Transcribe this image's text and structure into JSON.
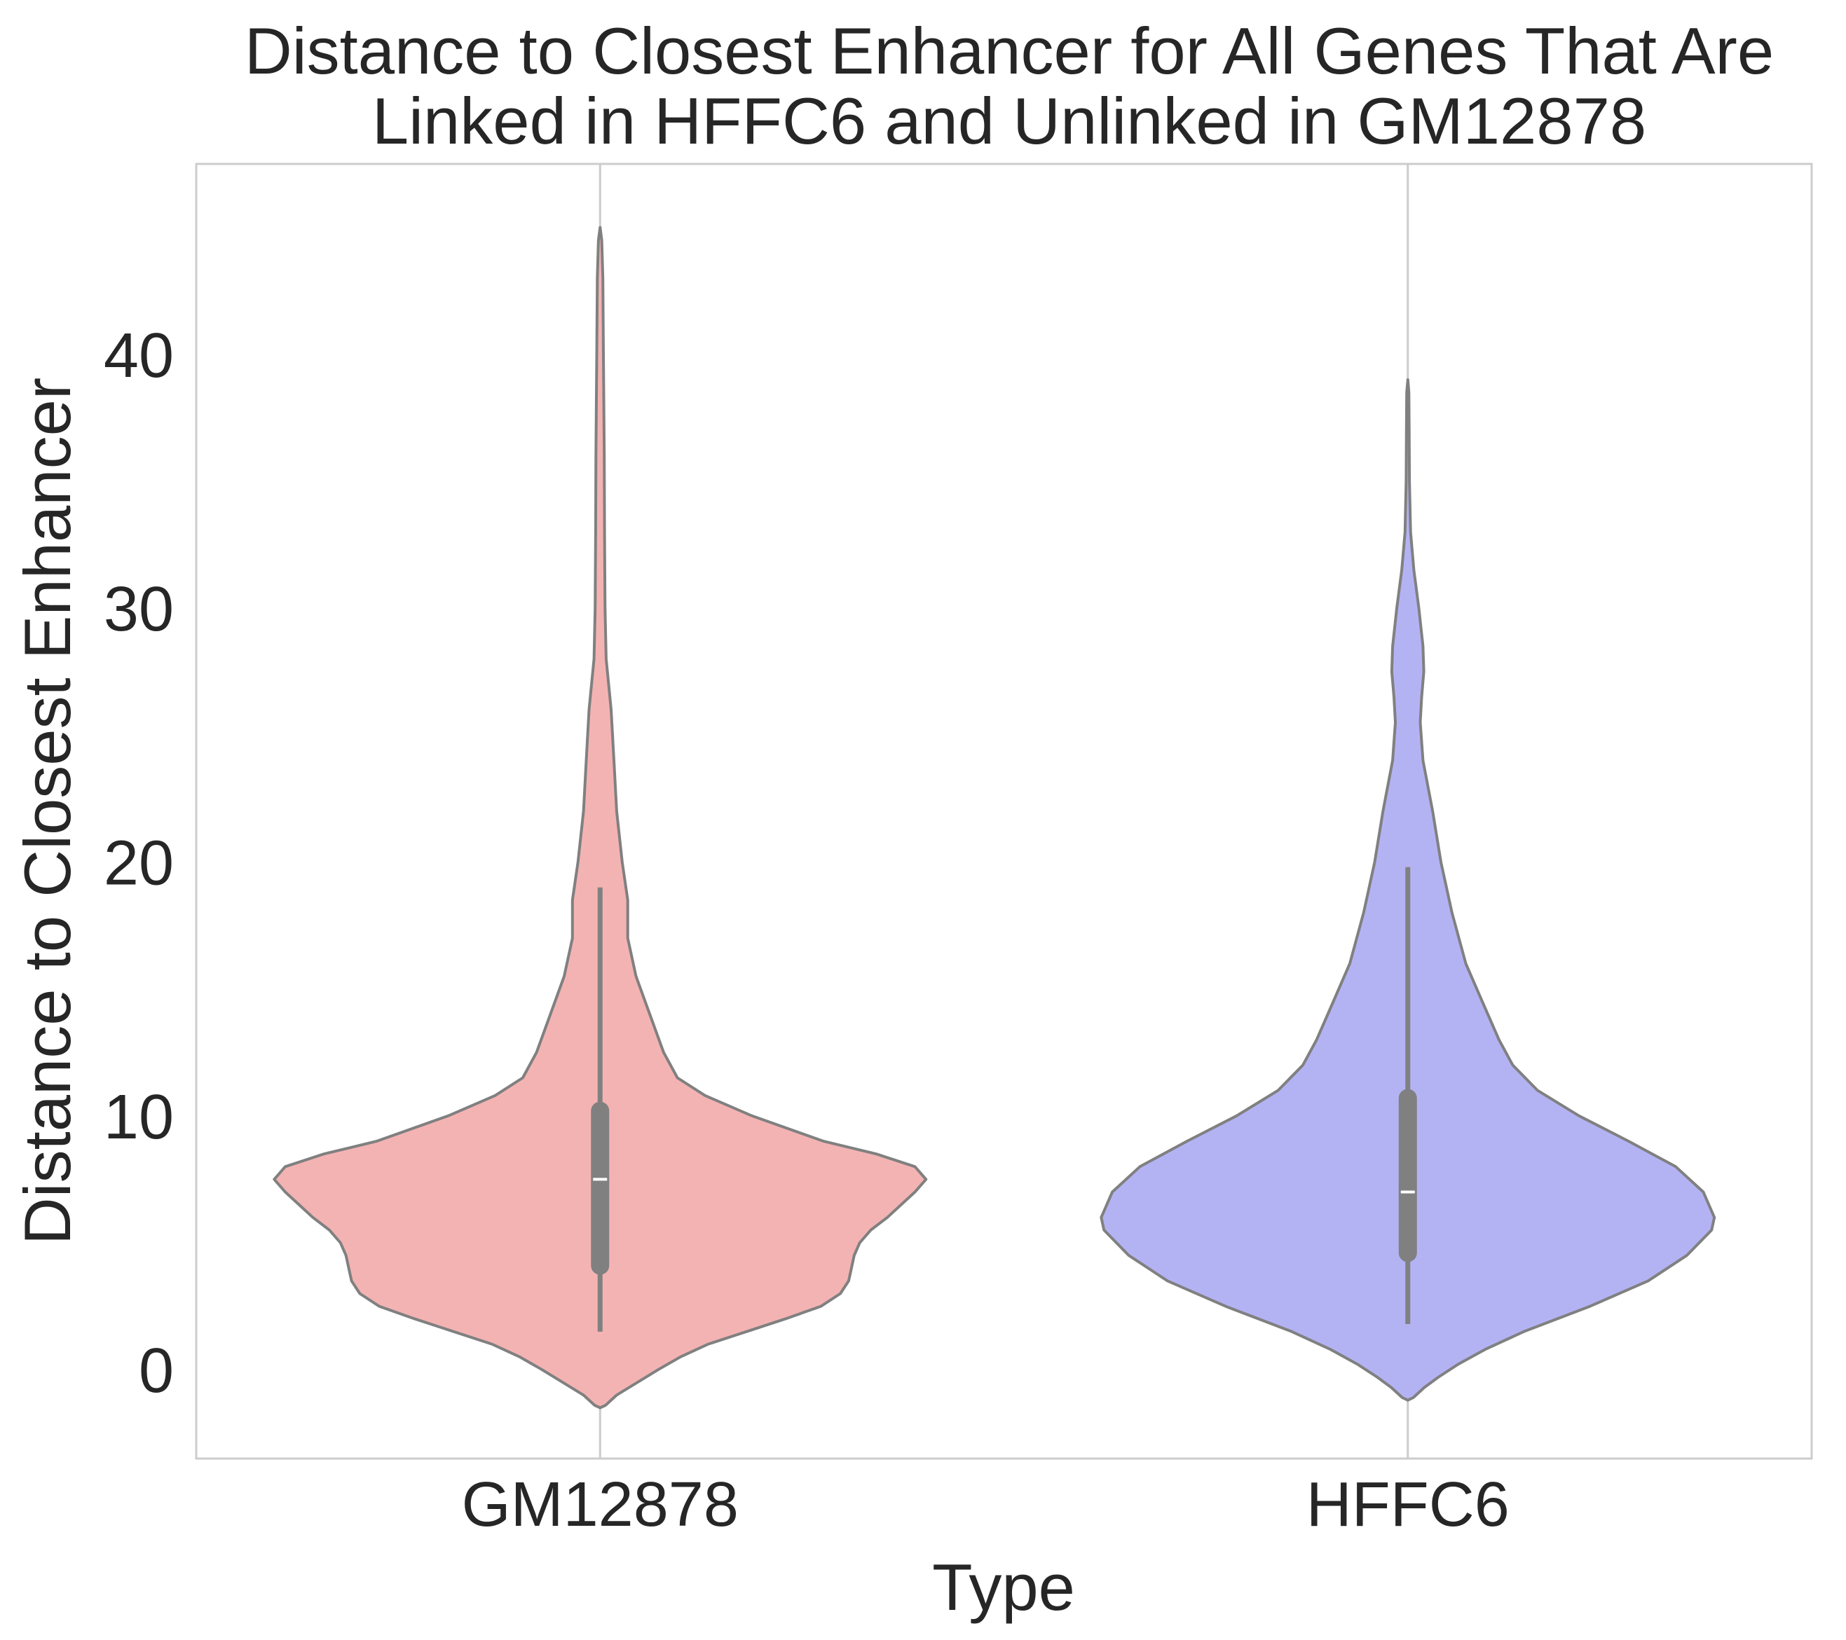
{
  "chart_data": {
    "type": "violin",
    "title": [
      "Distance to Closest Enhancer for All Genes That Are",
      "Linked in HFFC6 and Unlinked in GM12878"
    ],
    "xlabel": "Type",
    "ylabel": "Distance to Closest Enhancer",
    "categories": [
      "GM12878",
      "HFFC6"
    ],
    "ylim": [
      -3.5,
      47.5
    ],
    "yticks": [
      0,
      10,
      20,
      30,
      40
    ],
    "grid": true,
    "series": [
      {
        "category": "GM12878",
        "fill": "#f4b3b3",
        "edge": "#808080",
        "whisker": [
          1.5,
          19.0
        ],
        "quartiles": [
          4.1,
          10.2
        ],
        "median": 7.5,
        "density": [
          [
            -1.5,
            0.0
          ],
          [
            -1.4,
            0.02
          ],
          [
            -1.0,
            0.06
          ],
          [
            -0.6,
            0.12
          ],
          [
            0,
            0.21
          ],
          [
            0.5,
            0.29
          ],
          [
            1.0,
            0.39
          ],
          [
            1.5,
            0.53
          ],
          [
            2.0,
            0.67
          ],
          [
            2.5,
            0.8
          ],
          [
            3.0,
            0.87
          ],
          [
            3.5,
            0.9
          ],
          [
            4.0,
            0.91
          ],
          [
            4.5,
            0.92
          ],
          [
            5.0,
            0.94
          ],
          [
            5.5,
            0.98
          ],
          [
            6.0,
            1.04
          ],
          [
            7.0,
            1.14
          ],
          [
            7.5,
            1.18
          ],
          [
            8.0,
            1.14
          ],
          [
            8.5,
            1.0
          ],
          [
            9.0,
            0.81
          ],
          [
            10.0,
            0.55
          ],
          [
            10.8,
            0.38
          ],
          [
            11.5,
            0.28
          ],
          [
            12.5,
            0.23
          ],
          [
            14.0,
            0.18
          ],
          [
            15.5,
            0.13
          ],
          [
            17.0,
            0.1
          ],
          [
            18.5,
            0.1
          ],
          [
            20.0,
            0.08
          ],
          [
            22.0,
            0.06
          ],
          [
            24.0,
            0.05
          ],
          [
            26.0,
            0.04
          ],
          [
            28.0,
            0.022
          ],
          [
            30.0,
            0.018
          ],
          [
            33.0,
            0.016
          ],
          [
            36.0,
            0.015
          ],
          [
            40.0,
            0.012
          ],
          [
            43.0,
            0.01
          ],
          [
            44.5,
            0.006
          ],
          [
            45.0,
            0.0
          ]
        ]
      },
      {
        "category": "HFFC6",
        "fill": "#b3b3f4",
        "edge": "#808080",
        "whisker": [
          1.8,
          19.8
        ],
        "quartiles": [
          4.6,
          10.7
        ],
        "median": 7.0,
        "density": [
          [
            -1.2,
            0.0
          ],
          [
            -1.1,
            0.02
          ],
          [
            -0.7,
            0.06
          ],
          [
            -0.3,
            0.11
          ],
          [
            0.2,
            0.18
          ],
          [
            0.8,
            0.28
          ],
          [
            1.5,
            0.42
          ],
          [
            2.5,
            0.66
          ],
          [
            3.5,
            0.87
          ],
          [
            4.5,
            1.01
          ],
          [
            5.5,
            1.1
          ],
          [
            6.0,
            1.11
          ],
          [
            7.0,
            1.07
          ],
          [
            8.0,
            0.97
          ],
          [
            9.0,
            0.8
          ],
          [
            10.0,
            0.62
          ],
          [
            11.0,
            0.47
          ],
          [
            12.0,
            0.38
          ],
          [
            13.0,
            0.33
          ],
          [
            14.5,
            0.27
          ],
          [
            16.0,
            0.21
          ],
          [
            18.0,
            0.16
          ],
          [
            20.0,
            0.12
          ],
          [
            22.0,
            0.09
          ],
          [
            24.0,
            0.055
          ],
          [
            25.5,
            0.045
          ],
          [
            26.5,
            0.05
          ],
          [
            27.5,
            0.058
          ],
          [
            28.5,
            0.055
          ],
          [
            30.0,
            0.04
          ],
          [
            31.5,
            0.022
          ],
          [
            33.0,
            0.01
          ],
          [
            35.0,
            0.006
          ],
          [
            37.0,
            0.005
          ],
          [
            38.5,
            0.004
          ],
          [
            39.0,
            0.0
          ]
        ]
      }
    ]
  }
}
